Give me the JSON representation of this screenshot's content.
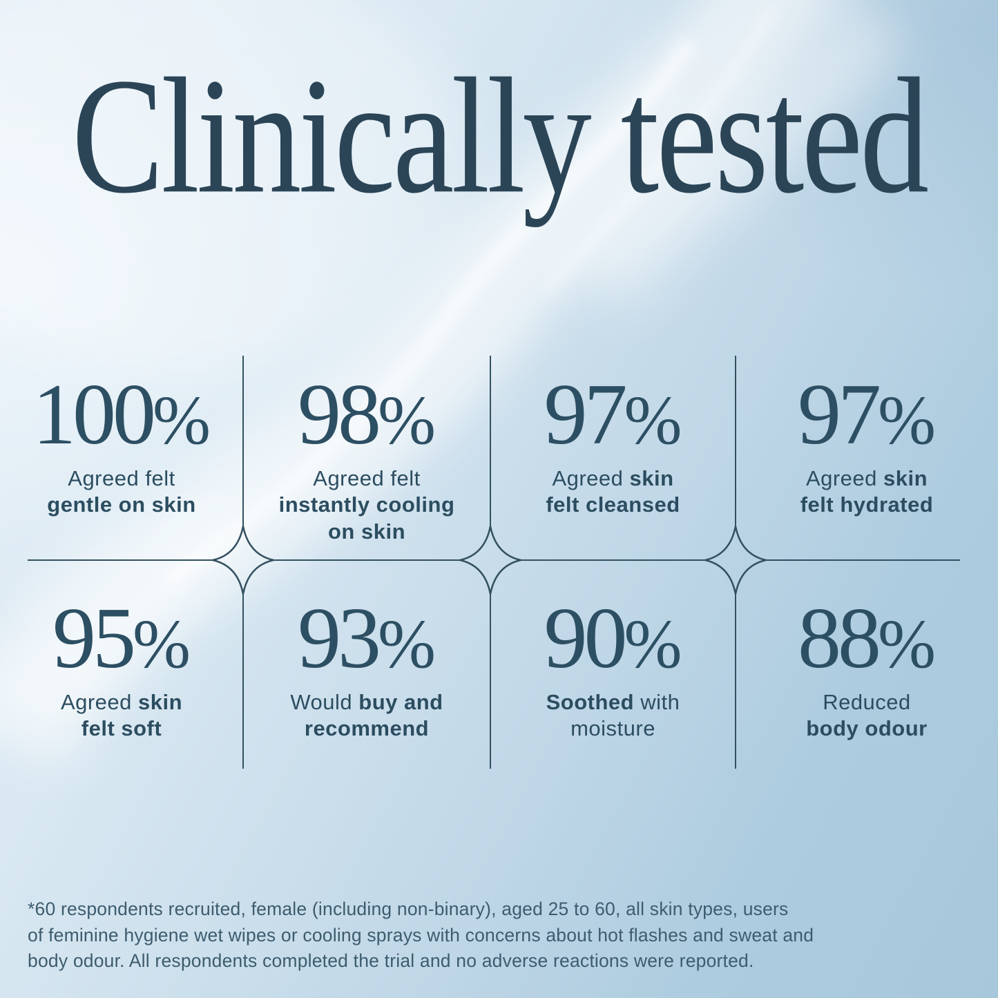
{
  "title": "Clinically tested",
  "stats": [
    {
      "value": "100",
      "unit": "%",
      "label_segments": [
        {
          "text": "Agreed felt\n",
          "bold": false
        },
        {
          "text": "gentle on skin",
          "bold": true
        }
      ]
    },
    {
      "value": "98",
      "unit": "%",
      "label_segments": [
        {
          "text": "Agreed felt\n",
          "bold": false
        },
        {
          "text": "instantly cooling\non skin",
          "bold": true
        }
      ]
    },
    {
      "value": "97",
      "unit": "%",
      "label_segments": [
        {
          "text": "Agreed ",
          "bold": false
        },
        {
          "text": "skin\nfelt cleansed",
          "bold": true
        }
      ]
    },
    {
      "value": "97",
      "unit": "%",
      "label_segments": [
        {
          "text": "Agreed ",
          "bold": false
        },
        {
          "text": "skin\nfelt hydrated",
          "bold": true
        }
      ]
    },
    {
      "value": "95",
      "unit": "%",
      "label_segments": [
        {
          "text": "Agreed ",
          "bold": false
        },
        {
          "text": "skin\nfelt soft",
          "bold": true
        }
      ]
    },
    {
      "value": "93",
      "unit": "%",
      "label_segments": [
        {
          "text": "Would ",
          "bold": false
        },
        {
          "text": "buy and\nrecommend",
          "bold": true
        }
      ]
    },
    {
      "value": "90",
      "unit": "%",
      "label_segments": [
        {
          "text": "Soothed",
          "bold": true
        },
        {
          "text": " with\nmoisture",
          "bold": false
        }
      ]
    },
    {
      "value": "88",
      "unit": "%",
      "label_segments": [
        {
          "text": "Reduced\n",
          "bold": false
        },
        {
          "text": "body odour",
          "bold": true
        }
      ]
    }
  ],
  "footnote": "*60 respondents recruited, female (including non-binary), aged 25 to 60, all skin types, users\nof feminine hygiene wet wipes or cooling sprays with concerns about hot flashes and sweat and\nbody odour. All respondents completed the trial and no adverse reactions were reported.",
  "colors": {
    "title_text": "#2b4557",
    "stat_text": "#2d4f63",
    "label_text": "#2c4d60",
    "footnote_text": "#3d5c6e",
    "ornament_stroke": "#33505f",
    "background_light": "#e4eef6",
    "background_deep": "#a7c7db"
  },
  "chart_data": {
    "type": "table",
    "title": "Clinically tested",
    "categories": [
      "Agreed felt gentle on skin",
      "Agreed felt instantly cooling on skin",
      "Agreed skin felt cleansed",
      "Agreed skin felt hydrated",
      "Agreed skin felt soft",
      "Would buy and recommend",
      "Soothed with moisture",
      "Reduced body odour"
    ],
    "values": [
      100,
      98,
      97,
      97,
      95,
      93,
      90,
      88
    ],
    "unit": "%"
  }
}
